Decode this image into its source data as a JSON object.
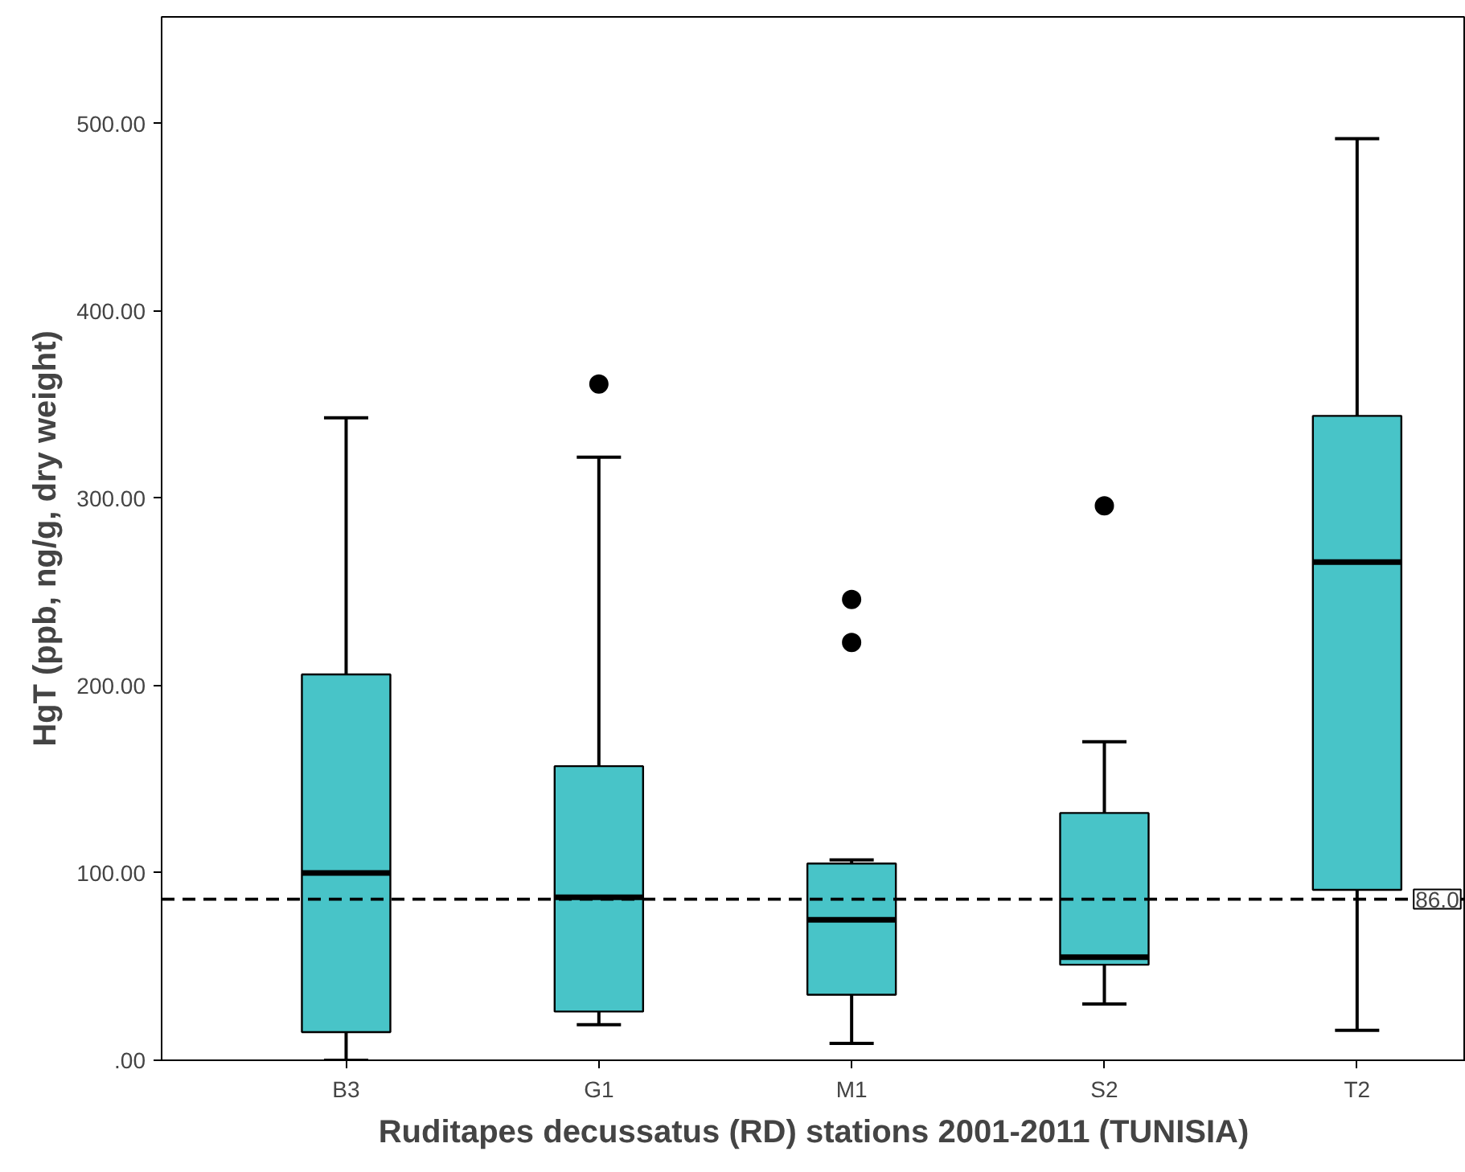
{
  "chart_data": {
    "type": "box",
    "xlabel": "Ruditapes decussatus (RD) stations 2001-2011 (TUNISIA)",
    "ylabel": "HgT (ppb, ng/g, dry weight)",
    "categories": [
      "B3",
      "G1",
      "M1",
      "S2",
      "T2"
    ],
    "color": "#48c4c8",
    "boxes": [
      {
        "low": 0,
        "q1": 15,
        "median": 100,
        "q3": 206,
        "high": 343
      },
      {
        "low": 19,
        "q1": 26,
        "median": 87,
        "q3": 157,
        "high": 322,
        "outliers": [
          361
        ]
      },
      {
        "low": 9,
        "q1": 35,
        "median": 75,
        "q3": 105,
        "high": 107,
        "outliers": [
          246,
          223
        ]
      },
      {
        "low": 30,
        "q1": 51,
        "median": 55,
        "q3": 132,
        "high": 170,
        "outliers": [
          296
        ]
      },
      {
        "low": 16,
        "q1": 91,
        "median": 266,
        "q3": 344,
        "high": 492
      }
    ],
    "ylim": [
      0,
      557
    ],
    "yticks": [
      {
        "value": 0,
        "label": ".00"
      },
      {
        "value": 100,
        "label": "100.00"
      },
      {
        "value": 200,
        "label": "200.00"
      },
      {
        "value": 300,
        "label": "300.00"
      },
      {
        "value": 400,
        "label": "400.00"
      },
      {
        "value": 500,
        "label": "500.00"
      }
    ],
    "ref_lines": [
      {
        "axis": "y",
        "value": 86,
        "label": "86.0",
        "line_style": "dashed"
      }
    ],
    "grid": false
  }
}
